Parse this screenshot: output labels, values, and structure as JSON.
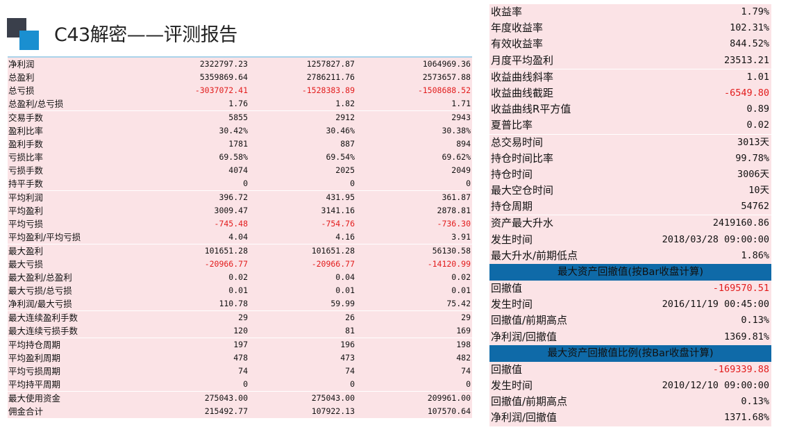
{
  "title": "C43解密——评测报告",
  "left_table": {
    "rows": [
      {
        "label": "净利润",
        "v": [
          "2322797.23",
          "1257827.87",
          "1064969.36"
        ],
        "neg": false,
        "sep": false
      },
      {
        "label": "总盈利",
        "v": [
          "5359869.64",
          "2786211.76",
          "2573657.88"
        ],
        "neg": false,
        "sep": false
      },
      {
        "label": "总亏损",
        "v": [
          "-3037072.41",
          "-1528383.89",
          "-1508688.52"
        ],
        "neg": true,
        "sep": false
      },
      {
        "label": "总盈利/总亏损",
        "v": [
          "1.76",
          "1.82",
          "1.71"
        ],
        "neg": false,
        "sep": false
      },
      {
        "label": "交易手数",
        "v": [
          "5855",
          "2912",
          "2943"
        ],
        "neg": false,
        "sep": true
      },
      {
        "label": "盈利比率",
        "v": [
          "30.42%",
          "30.46%",
          "30.38%"
        ],
        "neg": false,
        "sep": false
      },
      {
        "label": "盈利手数",
        "v": [
          "1781",
          "887",
          "894"
        ],
        "neg": false,
        "sep": false
      },
      {
        "label": "亏损比率",
        "v": [
          "69.58%",
          "69.54%",
          "69.62%"
        ],
        "neg": false,
        "sep": false
      },
      {
        "label": "亏损手数",
        "v": [
          "4074",
          "2025",
          "2049"
        ],
        "neg": false,
        "sep": false
      },
      {
        "label": "持平手数",
        "v": [
          "0",
          "0",
          "0"
        ],
        "neg": false,
        "sep": false
      },
      {
        "label": "平均利润",
        "v": [
          "396.72",
          "431.95",
          "361.87"
        ],
        "neg": false,
        "sep": true
      },
      {
        "label": "平均盈利",
        "v": [
          "3009.47",
          "3141.16",
          "2878.81"
        ],
        "neg": false,
        "sep": false
      },
      {
        "label": "平均亏损",
        "v": [
          "-745.48",
          "-754.76",
          "-736.30"
        ],
        "neg": true,
        "sep": false
      },
      {
        "label": "平均盈利/平均亏损",
        "v": [
          "4.04",
          "4.16",
          "3.91"
        ],
        "neg": false,
        "sep": false
      },
      {
        "label": "最大盈利",
        "v": [
          "101651.28",
          "101651.28",
          "56130.58"
        ],
        "neg": false,
        "sep": true
      },
      {
        "label": "最大亏损",
        "v": [
          "-20966.77",
          "-20966.77",
          "-14120.99"
        ],
        "neg": true,
        "sep": false
      },
      {
        "label": "最大盈利/总盈利",
        "v": [
          "0.02",
          "0.04",
          "0.02"
        ],
        "neg": false,
        "sep": false
      },
      {
        "label": "最大亏损/总亏损",
        "v": [
          "0.01",
          "0.01",
          "0.01"
        ],
        "neg": false,
        "sep": false
      },
      {
        "label": "净利润/最大亏损",
        "v": [
          "110.78",
          "59.99",
          "75.42"
        ],
        "neg": false,
        "sep": false
      },
      {
        "label": "最大连续盈利手数",
        "v": [
          "29",
          "26",
          "29"
        ],
        "neg": false,
        "sep": true
      },
      {
        "label": "最大连续亏损手数",
        "v": [
          "120",
          "81",
          "169"
        ],
        "neg": false,
        "sep": false
      },
      {
        "label": "平均持仓周期",
        "v": [
          "197",
          "196",
          "198"
        ],
        "neg": false,
        "sep": true
      },
      {
        "label": "平均盈利周期",
        "v": [
          "478",
          "473",
          "482"
        ],
        "neg": false,
        "sep": false
      },
      {
        "label": "平均亏损周期",
        "v": [
          "74",
          "74",
          "74"
        ],
        "neg": false,
        "sep": false
      },
      {
        "label": "平均持平周期",
        "v": [
          "0",
          "0",
          "0"
        ],
        "neg": false,
        "sep": false
      },
      {
        "label": "最大使用资金",
        "v": [
          "275043.00",
          "275043.00",
          "209961.00"
        ],
        "neg": false,
        "sep": true
      },
      {
        "label": "佣金合计",
        "v": [
          "215492.77",
          "107922.13",
          "107570.64"
        ],
        "neg": false,
        "sep": false
      }
    ]
  },
  "right_table": {
    "rows_top": [
      {
        "label": "收益率",
        "value": "1.79%",
        "neg": false,
        "sep": false
      },
      {
        "label": "年度收益率",
        "value": "102.31%",
        "neg": false,
        "sep": false
      },
      {
        "label": "有效收益率",
        "value": "844.52%",
        "neg": false,
        "sep": false
      },
      {
        "label": "月度平均盈利",
        "value": "23513.21",
        "neg": false,
        "sep": false
      },
      {
        "label": "收益曲线斜率",
        "value": "1.01",
        "neg": false,
        "sep": true
      },
      {
        "label": "收益曲线截距",
        "value": "-6549.80",
        "neg": true,
        "sep": false
      },
      {
        "label": "收益曲线R平方值",
        "value": "0.89",
        "neg": false,
        "sep": false
      },
      {
        "label": "夏普比率",
        "value": "0.02",
        "neg": false,
        "sep": false
      },
      {
        "label": "总交易时间",
        "value": "3013天",
        "neg": false,
        "sep": true
      },
      {
        "label": "持仓时间比率",
        "value": "99.78%",
        "neg": false,
        "sep": false
      },
      {
        "label": "持仓时间",
        "value": "3006天",
        "neg": false,
        "sep": false
      },
      {
        "label": "最大空仓时间",
        "value": "10天",
        "neg": false,
        "sep": false
      },
      {
        "label": "持仓周期",
        "value": "54762",
        "neg": false,
        "sep": false
      },
      {
        "label": "资产最大升水",
        "value": "2419160.86",
        "neg": false,
        "sep": true
      },
      {
        "label": "发生时间",
        "value": "2018/03/28 09:00:00",
        "neg": false,
        "sep": false
      },
      {
        "label": "最大升水/前期低点",
        "value": "1.86%",
        "neg": false,
        "sep": false
      }
    ],
    "section1": {
      "header": "最大资产回撤值(按Bar收盘计算)",
      "rows": [
        {
          "label": "回撤值",
          "value": "-169570.51",
          "neg": true
        },
        {
          "label": "发生时间",
          "value": "2016/11/19 00:45:00",
          "neg": false
        },
        {
          "label": "回撤值/前期高点",
          "value": "0.13%",
          "neg": false
        },
        {
          "label": "净利润/回撤值",
          "value": "1369.81%",
          "neg": false
        }
      ]
    },
    "section2": {
      "header": "最大资产回撤值比例(按Bar收盘计算)",
      "rows": [
        {
          "label": "回撤值",
          "value": "-169339.88",
          "neg": true
        },
        {
          "label": "发生时间",
          "value": "2010/12/10 09:00:00",
          "neg": false
        },
        {
          "label": "回撤值/前期高点",
          "value": "0.13%",
          "neg": false
        },
        {
          "label": "净利润/回撤值",
          "value": "1371.68%",
          "neg": false
        }
      ]
    }
  },
  "colors": {
    "negative": "#e21b1b",
    "row_bg": "#fbe3e6",
    "header_bg": "#0f6aa8",
    "accent": "#1a8fd0"
  }
}
